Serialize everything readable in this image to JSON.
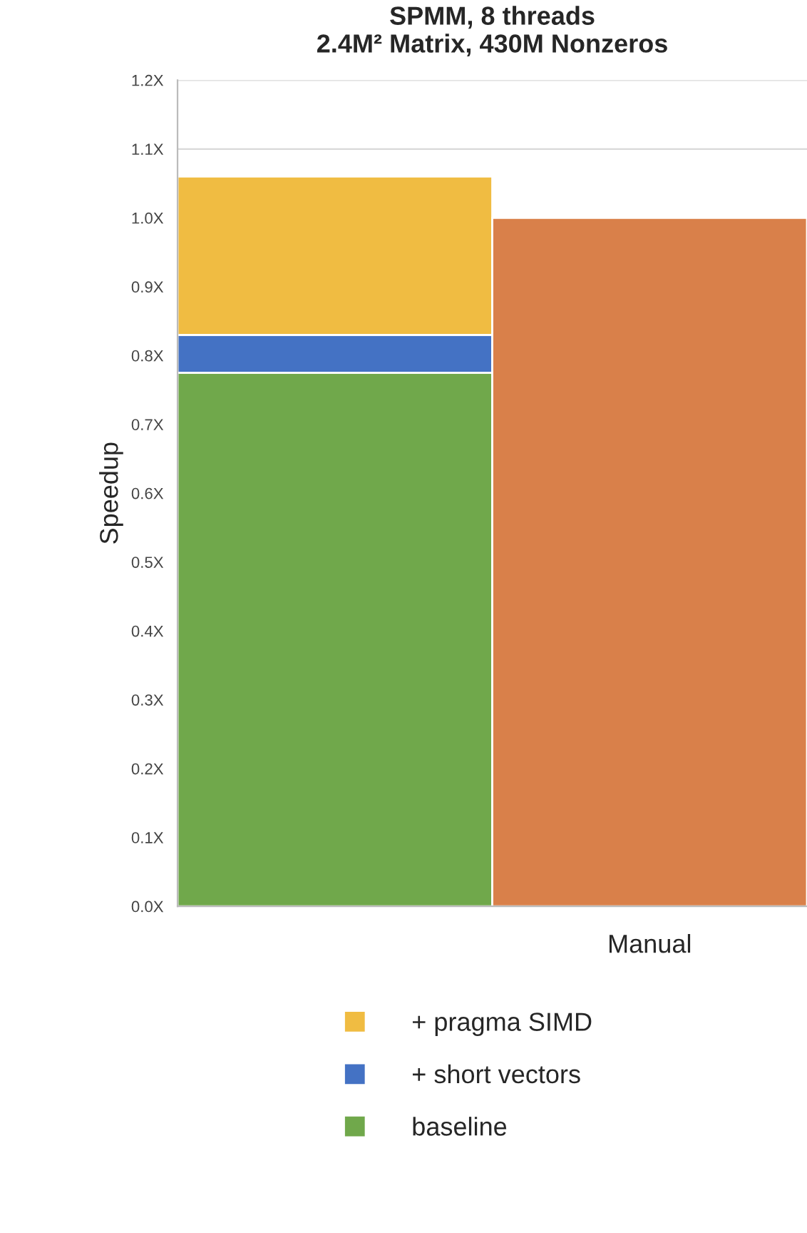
{
  "chart_data": {
    "type": "bar",
    "title": "SPMM, 8 threads\n2.4M² Matrix, 430M Nonzeros",
    "ylabel": "Speedup",
    "categories": [
      null,
      "Manual"
    ],
    "stacked": true,
    "series": [
      {
        "name": "baseline",
        "color": "#70a84b",
        "values": [
          0.775,
          null
        ]
      },
      {
        "name": "+ short vectors",
        "color": "#4472c4",
        "values": [
          0.055,
          null
        ]
      },
      {
        "name": "+ pragma SIMD",
        "color": "#f0bc42",
        "values": [
          0.23,
          null
        ]
      },
      {
        "color": "#d9804a",
        "values": [
          null,
          1.0
        ]
      }
    ],
    "ylim": [
      0,
      1.2
    ],
    "yticks": [
      {
        "value": 0,
        "label": "0.0X"
      },
      {
        "value": 0.1,
        "label": "0.1X"
      },
      {
        "value": 0.2,
        "label": "0.2X"
      },
      {
        "value": 0.3,
        "label": "0.3X"
      },
      {
        "value": 0.4,
        "label": "0.4X"
      },
      {
        "value": 0.5,
        "label": "0.5X"
      },
      {
        "value": 0.6,
        "label": "0.6X"
      },
      {
        "value": 0.7,
        "label": "0.7X"
      },
      {
        "value": 0.8,
        "label": "0.8X"
      },
      {
        "value": 0.9,
        "label": "0.9X"
      },
      {
        "value": 1.0,
        "label": "1.0X"
      },
      {
        "value": 1.1,
        "label": "1.1X"
      },
      {
        "value": 1.2,
        "label": "1.2X"
      }
    ],
    "grid": "y",
    "legend": "bottom",
    "marker": "square"
  }
}
